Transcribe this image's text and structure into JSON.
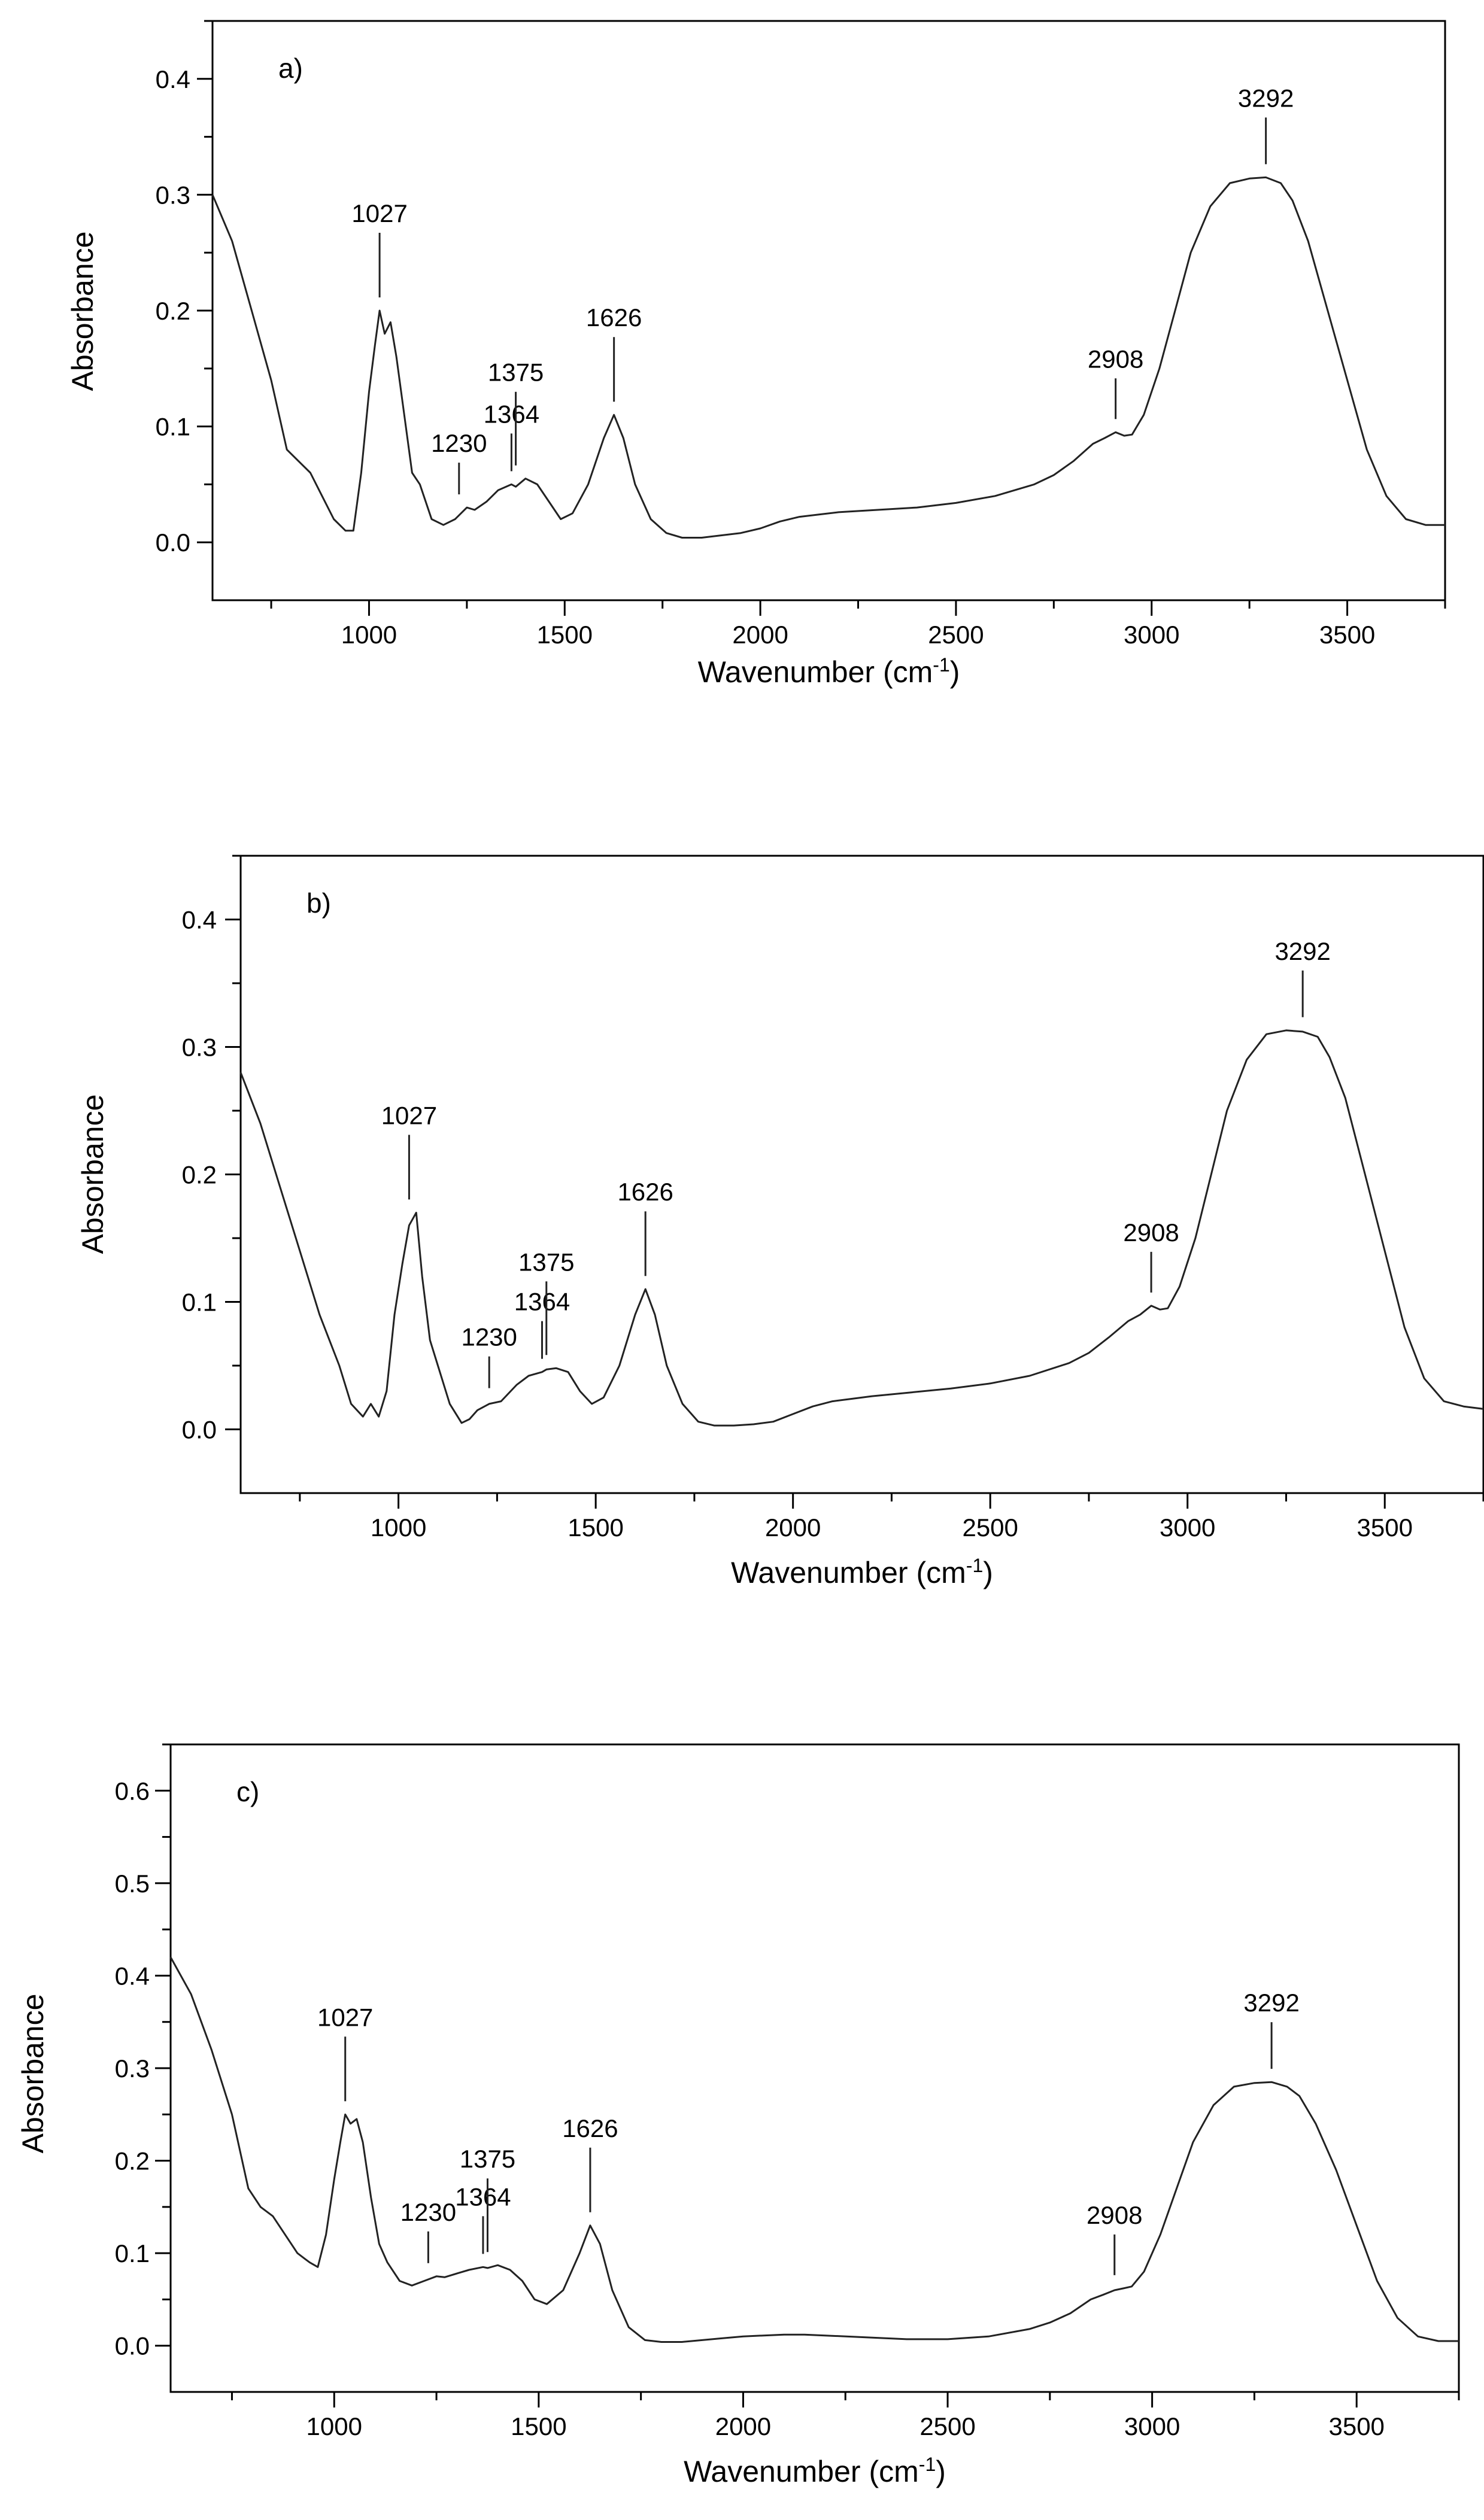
{
  "chart_data": [
    {
      "type": "line",
      "title": "",
      "panel_label": "a)",
      "xlabel": "Wavenumber (cm",
      "xlabel_sup": "-1",
      "xlabel_close": ")",
      "ylabel": "Absorbance",
      "xlim": [
        600,
        3750
      ],
      "ylim": [
        -0.05,
        0.45
      ],
      "xticks": [
        1000,
        1500,
        2000,
        2500,
        3000,
        3500
      ],
      "yticks": [
        0.0,
        0.1,
        0.2,
        0.3,
        0.4
      ],
      "ytick_labels": [
        "0.0",
        "0.1",
        "0.2",
        "0.3",
        "0.4"
      ],
      "grid": false,
      "series": [
        {
          "x": [
            600,
            650,
            700,
            750,
            790,
            820,
            850,
            880,
            910,
            940,
            960,
            980,
            1000,
            1015,
            1027,
            1040,
            1055,
            1070,
            1090,
            1110,
            1130,
            1160,
            1190,
            1220,
            1250,
            1270,
            1300,
            1330,
            1364,
            1375,
            1400,
            1430,
            1460,
            1490,
            1520,
            1560,
            1600,
            1626,
            1650,
            1680,
            1720,
            1760,
            1800,
            1850,
            1900,
            1950,
            2000,
            2050,
            2100,
            2150,
            2200,
            2300,
            2400,
            2500,
            2600,
            2700,
            2750,
            2800,
            2850,
            2880,
            2908,
            2930,
            2950,
            2980,
            3020,
            3060,
            3100,
            3150,
            3200,
            3250,
            3292,
            3330,
            3360,
            3400,
            3450,
            3500,
            3550,
            3600,
            3650,
            3700,
            3750
          ],
          "y": [
            0.3,
            0.26,
            0.2,
            0.14,
            0.08,
            0.07,
            0.06,
            0.04,
            0.02,
            0.01,
            0.01,
            0.06,
            0.13,
            0.17,
            0.2,
            0.18,
            0.19,
            0.16,
            0.11,
            0.06,
            0.05,
            0.02,
            0.015,
            0.02,
            0.03,
            0.028,
            0.035,
            0.045,
            0.05,
            0.048,
            0.055,
            0.05,
            0.035,
            0.02,
            0.025,
            0.05,
            0.09,
            0.11,
            0.09,
            0.05,
            0.02,
            0.008,
            0.004,
            0.004,
            0.006,
            0.008,
            0.012,
            0.018,
            0.022,
            0.024,
            0.026,
            0.028,
            0.03,
            0.034,
            0.04,
            0.05,
            0.058,
            0.07,
            0.085,
            0.09,
            0.095,
            0.092,
            0.093,
            0.11,
            0.15,
            0.2,
            0.25,
            0.29,
            0.31,
            0.314,
            0.315,
            0.31,
            0.295,
            0.26,
            0.2,
            0.14,
            0.08,
            0.04,
            0.02,
            0.015,
            0.015
          ]
        }
      ],
      "annotations": [
        {
          "label": "1027",
          "x": 1027,
          "y": 0.2
        },
        {
          "label": "1230",
          "x": 1230,
          "y": 0.03
        },
        {
          "label": "1364",
          "x": 1364,
          "y": 0.05
        },
        {
          "label": "1375",
          "x": 1375,
          "y": 0.055
        },
        {
          "label": "1626",
          "x": 1626,
          "y": 0.11
        },
        {
          "label": "2908",
          "x": 2908,
          "y": 0.095
        },
        {
          "label": "3292",
          "x": 3292,
          "y": 0.315
        }
      ]
    },
    {
      "type": "line",
      "title": "",
      "panel_label": "b)",
      "xlabel": "Wavenumber (cm",
      "xlabel_sup": "-1",
      "xlabel_close": ")",
      "ylabel": "Absorbance",
      "xlim": [
        600,
        3750
      ],
      "ylim": [
        -0.05,
        0.45
      ],
      "xticks": [
        1000,
        1500,
        2000,
        2500,
        3000,
        3500
      ],
      "yticks": [
        0.0,
        0.1,
        0.2,
        0.3,
        0.4
      ],
      "ytick_labels": [
        "0.0",
        "0.1",
        "0.2",
        "0.3",
        "0.4"
      ],
      "grid": false,
      "series": [
        {
          "x": [
            600,
            650,
            700,
            750,
            800,
            850,
            880,
            910,
            930,
            950,
            970,
            990,
            1010,
            1027,
            1045,
            1060,
            1080,
            1100,
            1130,
            1160,
            1180,
            1200,
            1230,
            1260,
            1300,
            1330,
            1364,
            1375,
            1400,
            1430,
            1460,
            1490,
            1520,
            1560,
            1600,
            1626,
            1650,
            1680,
            1720,
            1760,
            1800,
            1850,
            1900,
            1950,
            2000,
            2050,
            2100,
            2150,
            2200,
            2300,
            2400,
            2500,
            2600,
            2700,
            2750,
            2800,
            2850,
            2880,
            2908,
            2930,
            2950,
            2980,
            3020,
            3060,
            3100,
            3150,
            3200,
            3250,
            3292,
            3330,
            3360,
            3400,
            3450,
            3500,
            3550,
            3600,
            3650,
            3700,
            3750
          ],
          "y": [
            0.28,
            0.24,
            0.19,
            0.14,
            0.09,
            0.05,
            0.02,
            0.01,
            0.02,
            0.01,
            0.03,
            0.09,
            0.13,
            0.16,
            0.17,
            0.12,
            0.07,
            0.05,
            0.02,
            0.005,
            0.008,
            0.015,
            0.02,
            0.022,
            0.035,
            0.042,
            0.045,
            0.047,
            0.048,
            0.045,
            0.03,
            0.02,
            0.025,
            0.05,
            0.09,
            0.11,
            0.09,
            0.05,
            0.02,
            0.006,
            0.003,
            0.003,
            0.004,
            0.006,
            0.012,
            0.018,
            0.022,
            0.024,
            0.026,
            0.029,
            0.032,
            0.036,
            0.042,
            0.052,
            0.06,
            0.072,
            0.085,
            0.09,
            0.097,
            0.094,
            0.095,
            0.112,
            0.15,
            0.2,
            0.25,
            0.29,
            0.31,
            0.313,
            0.312,
            0.308,
            0.292,
            0.26,
            0.2,
            0.14,
            0.08,
            0.04,
            0.022,
            0.018,
            0.016
          ]
        }
      ],
      "annotations": [
        {
          "label": "1027",
          "x": 1027,
          "y": 0.17
        },
        {
          "label": "1230",
          "x": 1230,
          "y": 0.022
        },
        {
          "label": "1364",
          "x": 1364,
          "y": 0.045
        },
        {
          "label": "1375",
          "x": 1375,
          "y": 0.048
        },
        {
          "label": "1626",
          "x": 1626,
          "y": 0.11
        },
        {
          "label": "2908",
          "x": 2908,
          "y": 0.097
        },
        {
          "label": "3292",
          "x": 3292,
          "y": 0.313
        }
      ]
    },
    {
      "type": "line",
      "title": "",
      "panel_label": "c)",
      "xlabel": "Wavenumber (cm",
      "xlabel_sup": "-1",
      "xlabel_close": ")",
      "ylabel": "Absorbance",
      "xlim": [
        600,
        3750
      ],
      "ylim": [
        -0.05,
        0.65
      ],
      "xticks": [
        1000,
        1500,
        2000,
        2500,
        3000,
        3500
      ],
      "yticks": [
        0.0,
        0.1,
        0.2,
        0.3,
        0.4,
        0.5,
        0.6
      ],
      "ytick_labels": [
        "0.0",
        "0.1",
        "0.2",
        "0.3",
        "0.4",
        "0.5",
        "0.6"
      ],
      "grid": false,
      "series": [
        {
          "x": [
            600,
            650,
            700,
            750,
            790,
            820,
            850,
            880,
            910,
            940,
            960,
            980,
            1000,
            1015,
            1027,
            1040,
            1055,
            1070,
            1090,
            1110,
            1130,
            1160,
            1190,
            1220,
            1250,
            1270,
            1300,
            1330,
            1364,
            1375,
            1400,
            1430,
            1460,
            1490,
            1520,
            1560,
            1600,
            1626,
            1650,
            1680,
            1720,
            1760,
            1800,
            1850,
            1900,
            1950,
            2000,
            2050,
            2100,
            2150,
            2200,
            2300,
            2400,
            2500,
            2600,
            2700,
            2750,
            2800,
            2850,
            2880,
            2908,
            2930,
            2950,
            2980,
            3020,
            3060,
            3100,
            3150,
            3200,
            3250,
            3292,
            3330,
            3360,
            3400,
            3450,
            3500,
            3550,
            3600,
            3650,
            3700,
            3750
          ],
          "y": [
            0.42,
            0.38,
            0.32,
            0.25,
            0.17,
            0.15,
            0.14,
            0.12,
            0.1,
            0.09,
            0.085,
            0.12,
            0.18,
            0.22,
            0.25,
            0.24,
            0.245,
            0.22,
            0.16,
            0.11,
            0.09,
            0.07,
            0.065,
            0.07,
            0.075,
            0.074,
            0.078,
            0.082,
            0.085,
            0.084,
            0.087,
            0.082,
            0.07,
            0.05,
            0.045,
            0.06,
            0.1,
            0.13,
            0.11,
            0.06,
            0.02,
            0.006,
            0.004,
            0.004,
            0.006,
            0.008,
            0.01,
            0.011,
            0.012,
            0.012,
            0.011,
            0.009,
            0.007,
            0.007,
            0.01,
            0.018,
            0.025,
            0.035,
            0.05,
            0.055,
            0.06,
            0.062,
            0.064,
            0.08,
            0.12,
            0.17,
            0.22,
            0.26,
            0.28,
            0.284,
            0.285,
            0.28,
            0.27,
            0.24,
            0.19,
            0.13,
            0.07,
            0.03,
            0.01,
            0.005,
            0.005
          ]
        }
      ],
      "annotations": [
        {
          "label": "1027",
          "x": 1027,
          "y": 0.25
        },
        {
          "label": "1230",
          "x": 1230,
          "y": 0.075
        },
        {
          "label": "1364",
          "x": 1364,
          "y": 0.085
        },
        {
          "label": "1375",
          "x": 1375,
          "y": 0.087
        },
        {
          "label": "1626",
          "x": 1626,
          "y": 0.13
        },
        {
          "label": "2908",
          "x": 2908,
          "y": 0.062
        },
        {
          "label": "3292",
          "x": 3292,
          "y": 0.285
        }
      ]
    }
  ]
}
